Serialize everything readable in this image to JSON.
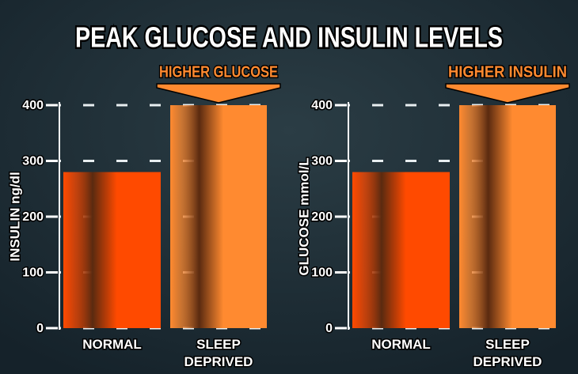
{
  "title": "PEAK GLUCOSE AND INSULIN LEVELS",
  "chart_data": [
    {
      "type": "bar",
      "y_label": "INSULIN ng/dl",
      "annotation": "HIGHER GLUCOSE",
      "categories": [
        "NORMAL",
        "SLEEP DEPRIVED"
      ],
      "values": [
        280,
        400
      ],
      "colors": [
        "#ff4a00",
        "#ff8a30"
      ],
      "ylim": [
        0,
        400
      ],
      "yticks": [
        0,
        100,
        200,
        300,
        400
      ],
      "grid": true
    },
    {
      "type": "bar",
      "y_label": "GLUCOSE mmol/L",
      "annotation": "HIGHER INSULIN",
      "categories": [
        "NORMAL",
        "SLEEP DEPRIVED"
      ],
      "values": [
        280,
        400
      ],
      "colors": [
        "#ff4a00",
        "#ff8a30"
      ],
      "ylim": [
        0,
        400
      ],
      "yticks": [
        0,
        100,
        200,
        300,
        400
      ],
      "grid": true
    }
  ]
}
